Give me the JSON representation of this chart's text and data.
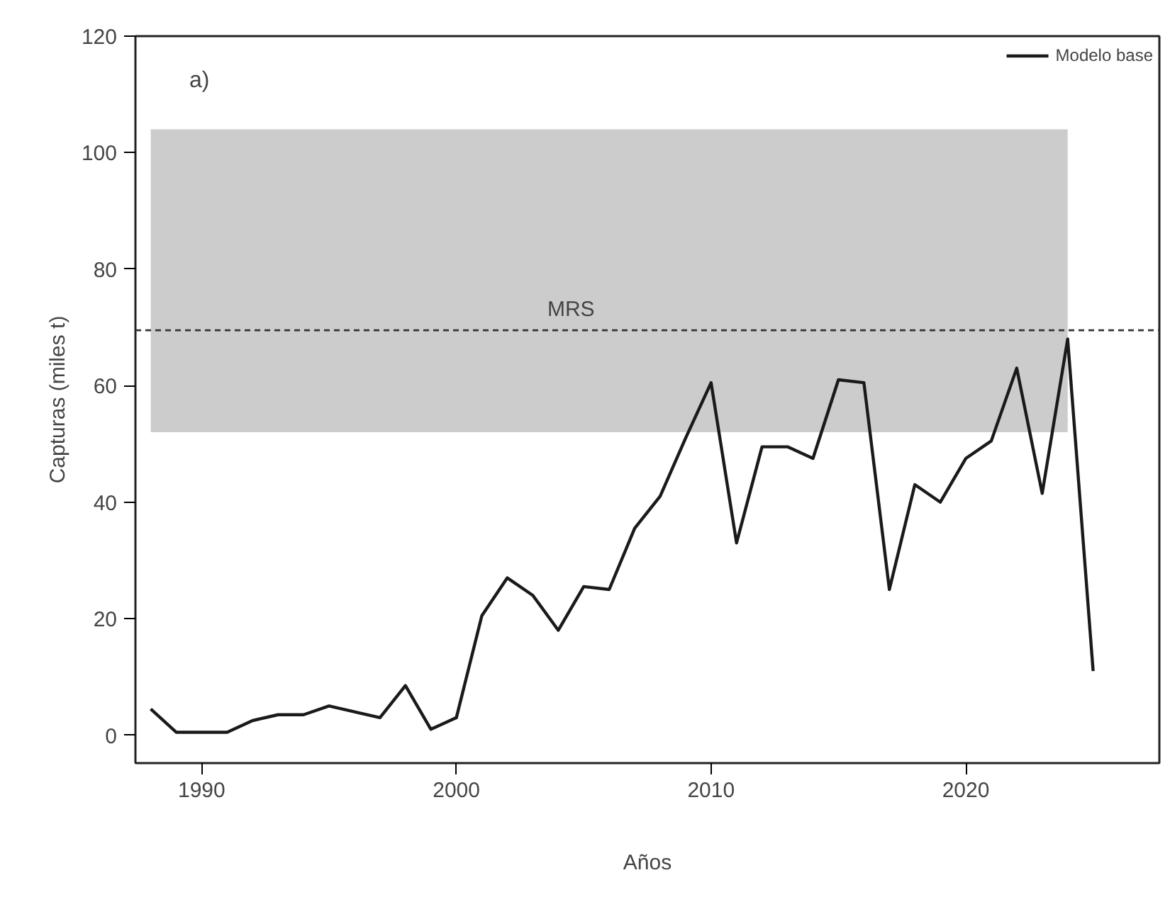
{
  "chart_data": {
    "type": "line",
    "xlabel": "Años",
    "ylabel": "Capturas (miles t)",
    "x": [
      1988,
      1989,
      1990,
      1991,
      1992,
      1993,
      1994,
      1995,
      1996,
      1997,
      1998,
      1999,
      2000,
      2001,
      2002,
      2003,
      2004,
      2005,
      2006,
      2007,
      2008,
      2009,
      2010,
      2011,
      2012,
      2013,
      2014,
      2015,
      2016,
      2017,
      2018,
      2019,
      2020,
      2021,
      2022,
      2023,
      2024,
      2025
    ],
    "series": [
      {
        "name": "Modelo base",
        "color": "#1a1a1a",
        "values": [
          4.5,
          0.5,
          0.5,
          0.5,
          2.5,
          3.5,
          3.5,
          5,
          4,
          3,
          8.5,
          1,
          3,
          20.5,
          27,
          24,
          18,
          25.5,
          25,
          35.5,
          41,
          51,
          60.5,
          33,
          49.5,
          49.5,
          47.5,
          61,
          60.5,
          25,
          43,
          40,
          47.5,
          50.5,
          63,
          41.5,
          68,
          11
        ]
      }
    ],
    "xlim": [
      1987.4,
      2027.6
    ],
    "ylim": [
      -4.8,
      120
    ],
    "xticks": [
      1990,
      2000,
      2010,
      2020
    ],
    "yticks": [
      0,
      20,
      40,
      60,
      80,
      100,
      120
    ],
    "ref_lines": [
      {
        "axis": "y",
        "value": 69.5,
        "label": "MRS",
        "line_style": "dashed",
        "color": "#333333"
      }
    ],
    "bands": [
      {
        "axis": "y",
        "from": 52,
        "to": 104,
        "color": "#cccccc"
      }
    ],
    "annotations": [
      "a)"
    ],
    "grid": false,
    "legend": "top right",
    "line_style": "solid",
    "marker": "none"
  }
}
